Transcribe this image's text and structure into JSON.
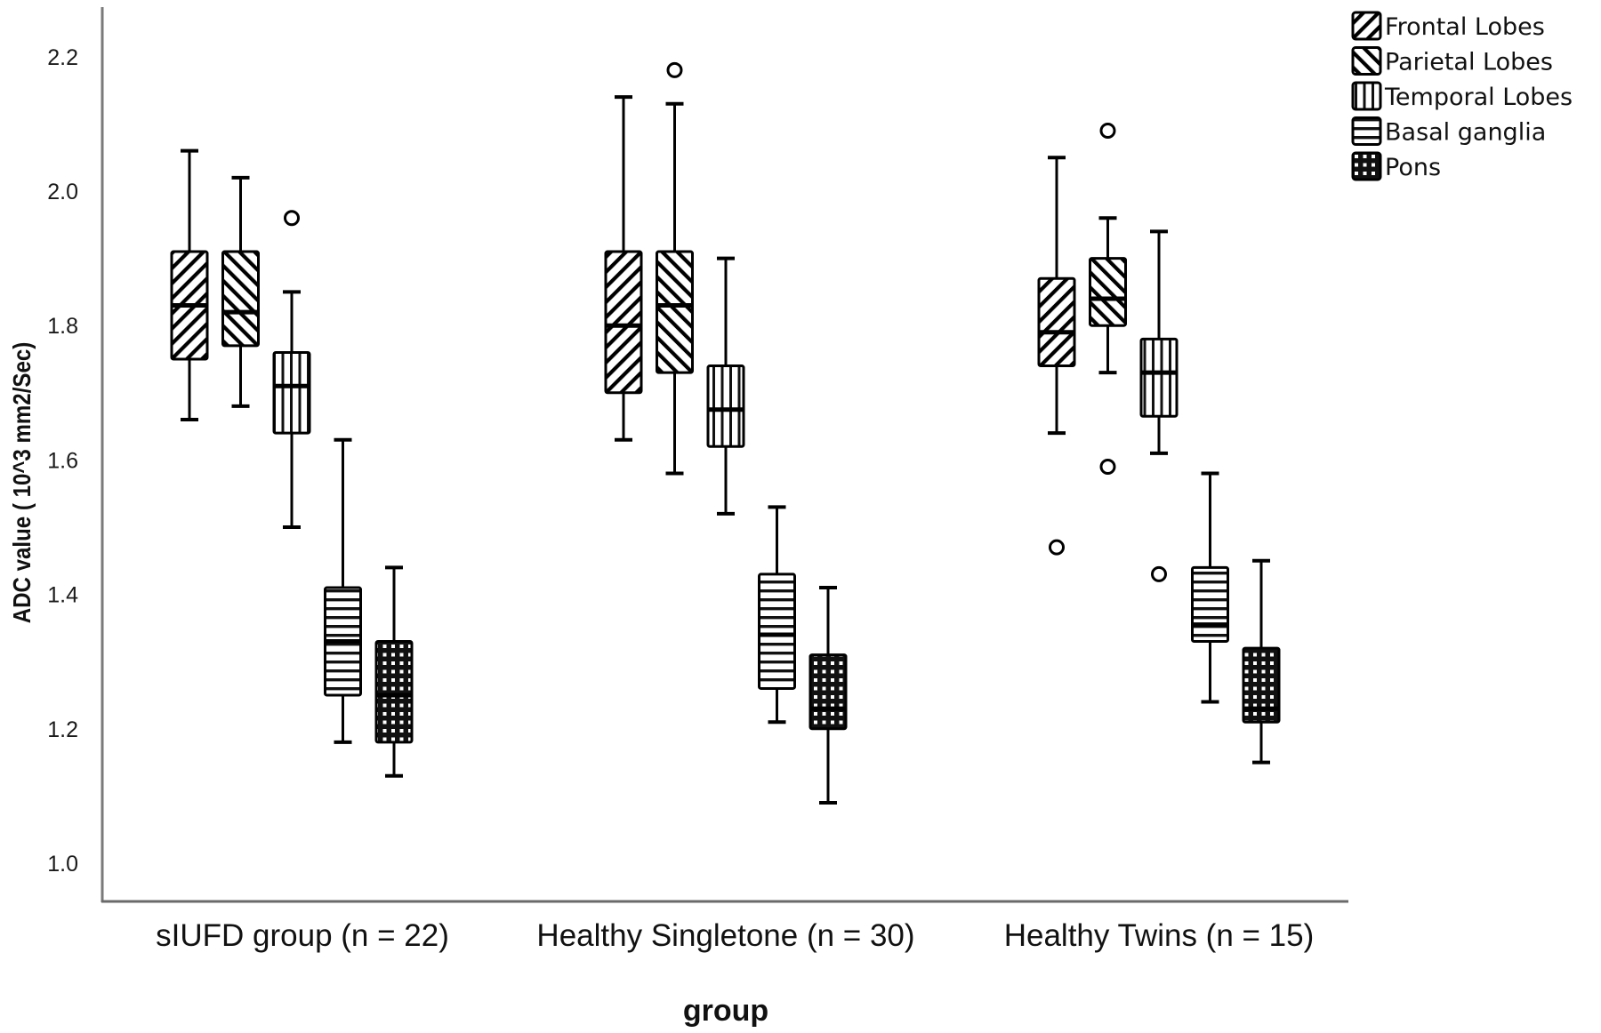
{
  "chart_data": {
    "type": "boxplot",
    "title": "",
    "xlabel": "group",
    "ylabel": "ADC value ( 10^3 mm2/Sec)",
    "ylim": [
      0.96,
      2.28
    ],
    "yticks": [
      1.0,
      1.2,
      1.4,
      1.6,
      1.8,
      2.0,
      2.2
    ],
    "ytick_labels": [
      "1.0",
      "1.2",
      "1.4",
      "1.6",
      "1.8",
      "2.0",
      "2.2"
    ],
    "grid": false,
    "legend_position": "top-right",
    "categories": [
      "sIUFD group (n = 22)",
      "Healthy Singletone (n = 30)",
      "Healthy Twins (n = 15)"
    ],
    "series": [
      {
        "name": "Frontal Lobes",
        "pattern": "diagonal-down",
        "boxes": [
          {
            "whisker_high": 2.06,
            "q3": 1.91,
            "median": 1.83,
            "q1": 1.75,
            "whisker_low": 1.66,
            "outliers": []
          },
          {
            "whisker_high": 2.14,
            "q3": 1.91,
            "median": 1.8,
            "q1": 1.7,
            "whisker_low": 1.63,
            "outliers": []
          },
          {
            "whisker_high": 2.05,
            "q3": 1.87,
            "median": 1.79,
            "q1": 1.74,
            "whisker_low": 1.64,
            "outliers": [
              1.47
            ]
          }
        ]
      },
      {
        "name": "Parietal Lobes",
        "pattern": "diagonal-up",
        "boxes": [
          {
            "whisker_high": 2.02,
            "q3": 1.91,
            "median": 1.82,
            "q1": 1.77,
            "whisker_low": 1.68,
            "outliers": []
          },
          {
            "whisker_high": 2.13,
            "q3": 1.91,
            "median": 1.83,
            "q1": 1.73,
            "whisker_low": 1.58,
            "outliers": [
              2.18
            ]
          },
          {
            "whisker_high": 1.96,
            "q3": 1.9,
            "median": 1.84,
            "q1": 1.8,
            "whisker_low": 1.73,
            "outliers": [
              2.09,
              1.59
            ]
          }
        ]
      },
      {
        "name": "Temporal Lobes",
        "pattern": "vertical",
        "boxes": [
          {
            "whisker_high": 1.85,
            "q3": 1.76,
            "median": 1.71,
            "q1": 1.64,
            "whisker_low": 1.5,
            "outliers": [
              1.96
            ]
          },
          {
            "whisker_high": 1.9,
            "q3": 1.74,
            "median": 1.675,
            "q1": 1.62,
            "whisker_low": 1.52,
            "outliers": []
          },
          {
            "whisker_high": 1.94,
            "q3": 1.78,
            "median": 1.73,
            "q1": 1.665,
            "whisker_low": 1.61,
            "outliers": [
              1.43
            ]
          }
        ]
      },
      {
        "name": "Basal ganglia",
        "pattern": "horizontal",
        "boxes": [
          {
            "whisker_high": 1.63,
            "q3": 1.41,
            "median": 1.33,
            "q1": 1.25,
            "whisker_low": 1.18,
            "outliers": []
          },
          {
            "whisker_high": 1.53,
            "q3": 1.43,
            "median": 1.34,
            "q1": 1.26,
            "whisker_low": 1.21,
            "outliers": []
          },
          {
            "whisker_high": 1.58,
            "q3": 1.44,
            "median": 1.355,
            "q1": 1.33,
            "whisker_low": 1.24,
            "outliers": []
          }
        ]
      },
      {
        "name": "Pons",
        "pattern": "grid",
        "boxes": [
          {
            "whisker_high": 1.44,
            "q3": 1.33,
            "median": 1.25,
            "q1": 1.18,
            "whisker_low": 1.13,
            "outliers": []
          },
          {
            "whisker_high": 1.41,
            "q3": 1.31,
            "median": 1.23,
            "q1": 1.2,
            "whisker_low": 1.09,
            "outliers": []
          },
          {
            "whisker_high": 1.45,
            "q3": 1.32,
            "median": 1.23,
            "q1": 1.21,
            "whisker_low": 1.15,
            "outliers": []
          }
        ]
      }
    ]
  }
}
